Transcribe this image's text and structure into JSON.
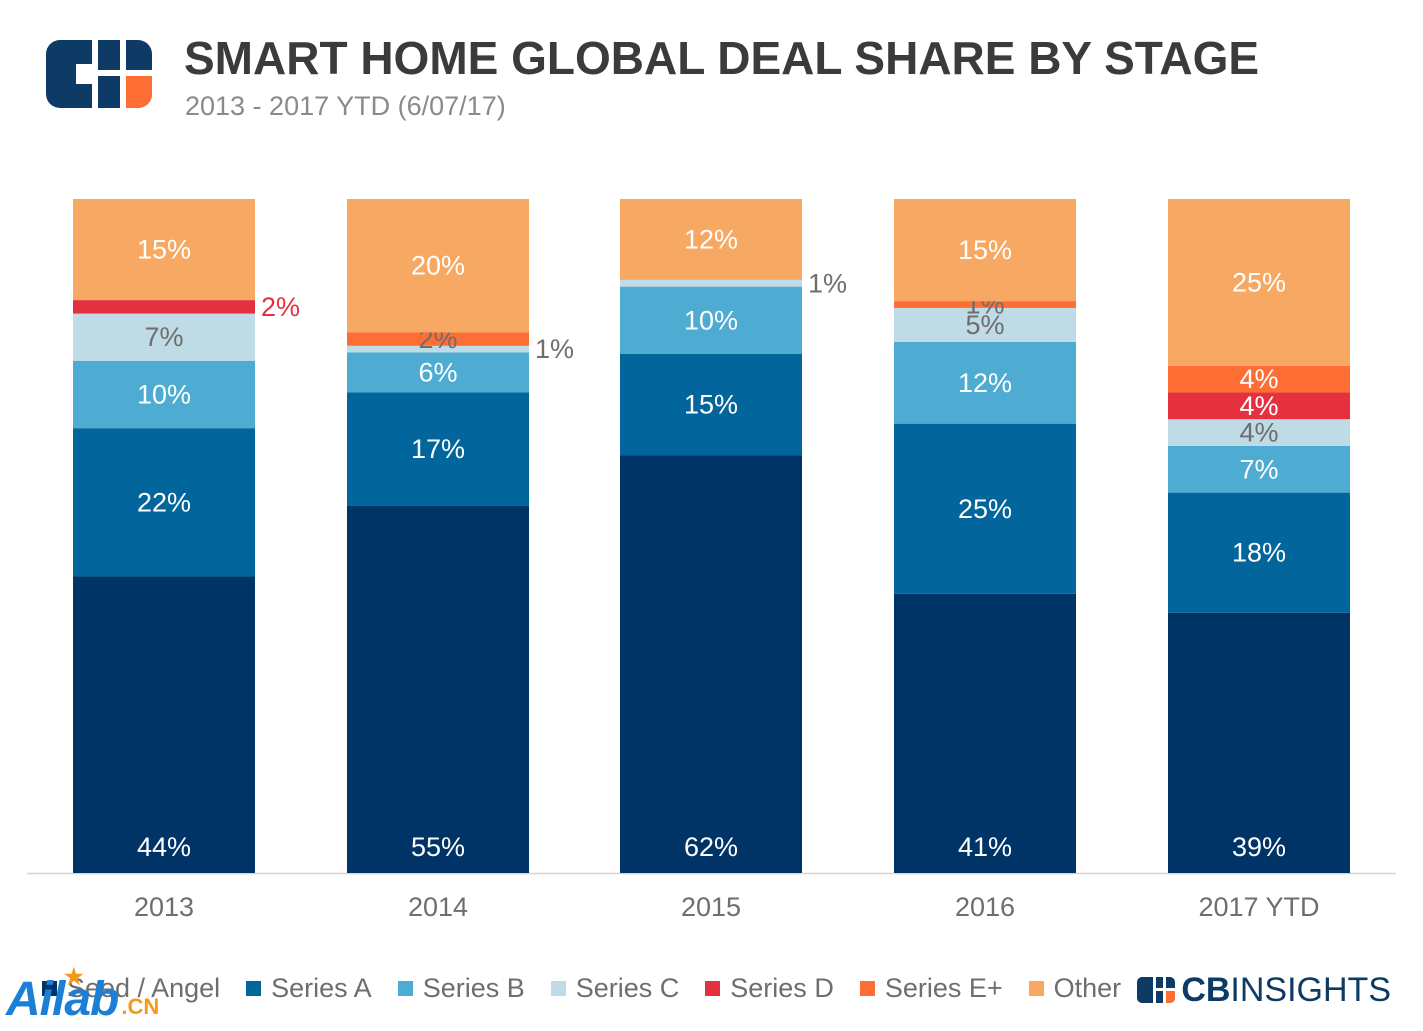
{
  "header": {
    "title": "SMART HOME GLOBAL DEAL SHARE BY STAGE",
    "subtitle": "2013 - 2017 YTD (6/07/17)"
  },
  "brand": {
    "cb": "CB",
    "insights": "INSIGHTS"
  },
  "watermark": {
    "main": "Ailab",
    "suffix": ".CN"
  },
  "colors": {
    "seed_angel": "#003366",
    "series_a": "#02659b",
    "series_b": "#4eabd1",
    "series_c": "#bfdbe5",
    "series_d": "#e5313f",
    "series_e_plus": "#fe6e34",
    "other": "#f7a963",
    "logo_navy": "#0d3b66",
    "logo_orange": "#fe6e34",
    "axis_text": "#6e6e6e"
  },
  "chart_data": {
    "type": "bar",
    "stacked": true,
    "categories": [
      "2013",
      "2014",
      "2015",
      "2016",
      "2017 YTD"
    ],
    "series": [
      {
        "name": "Seed / Angel",
        "values": [
          44,
          55,
          62,
          41,
          39
        ],
        "labels": [
          "44%",
          "55%",
          "62%",
          "41%",
          "39%"
        ],
        "color": "#003366"
      },
      {
        "name": "Series A",
        "values": [
          22,
          17,
          15,
          25,
          18
        ],
        "labels": [
          "22%",
          "17%",
          "15%",
          "25%",
          "18%"
        ],
        "color": "#02659b"
      },
      {
        "name": "Series B",
        "values": [
          10,
          6,
          10,
          12,
          7
        ],
        "labels": [
          "10%",
          "6%",
          "10%",
          "12%",
          "7%"
        ],
        "color": "#4eabd1"
      },
      {
        "name": "Series C",
        "values": [
          7,
          1,
          1,
          5,
          4
        ],
        "labels": [
          "7%",
          "1%",
          "1%",
          "5%",
          "4%"
        ],
        "color": "#bfdbe5"
      },
      {
        "name": "Series D",
        "values": [
          2,
          0,
          0,
          0,
          4
        ],
        "labels": [
          "2%",
          "",
          "",
          "",
          "4%"
        ],
        "color": "#e5313f"
      },
      {
        "name": "Series E+",
        "values": [
          0,
          2,
          0,
          1,
          4
        ],
        "labels": [
          "",
          "2%",
          "",
          "1%",
          "4%"
        ],
        "color": "#fe6e34"
      },
      {
        "name": "Other",
        "values": [
          15,
          20,
          12,
          15,
          25
        ],
        "labels": [
          "15%",
          "20%",
          "12%",
          "15%",
          "25%"
        ],
        "color": "#f7a963"
      }
    ],
    "ylim": [
      0,
      100
    ],
    "grid": false,
    "legend_position": "bottom-left"
  }
}
